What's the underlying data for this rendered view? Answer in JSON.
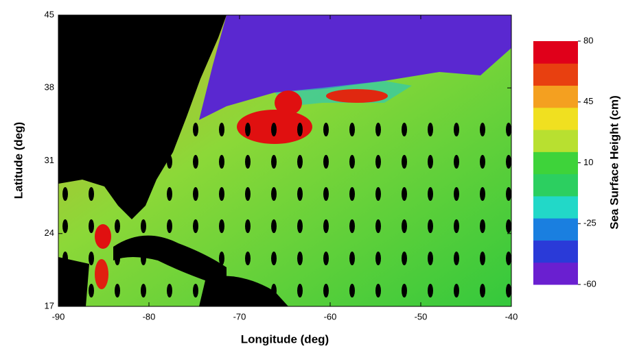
{
  "chart_data": {
    "type": "map",
    "xlabel": "Longitude (deg)",
    "ylabel": "Latitude (deg)",
    "xlim": [
      -90,
      -40
    ],
    "xticks": [
      -90,
      -80,
      -70,
      -60,
      -50,
      -40
    ],
    "ylim": [
      17,
      45
    ],
    "yticks": [
      17,
      24,
      31,
      38,
      45
    ],
    "colorbar": {
      "label": "Sea Surface Height (cm)",
      "lim": [
        -60,
        80
      ],
      "ticks": [
        -60,
        -25,
        10,
        45,
        80
      ],
      "colors": [
        "#6a1fd0",
        "#2a3ad8",
        "#1a7fe0",
        "#22d8c8",
        "#2ccf60",
        "#3ed33a",
        "#b8e030",
        "#f0e020",
        "#f4a020",
        "#e84010",
        "#e0001a"
      ]
    }
  }
}
